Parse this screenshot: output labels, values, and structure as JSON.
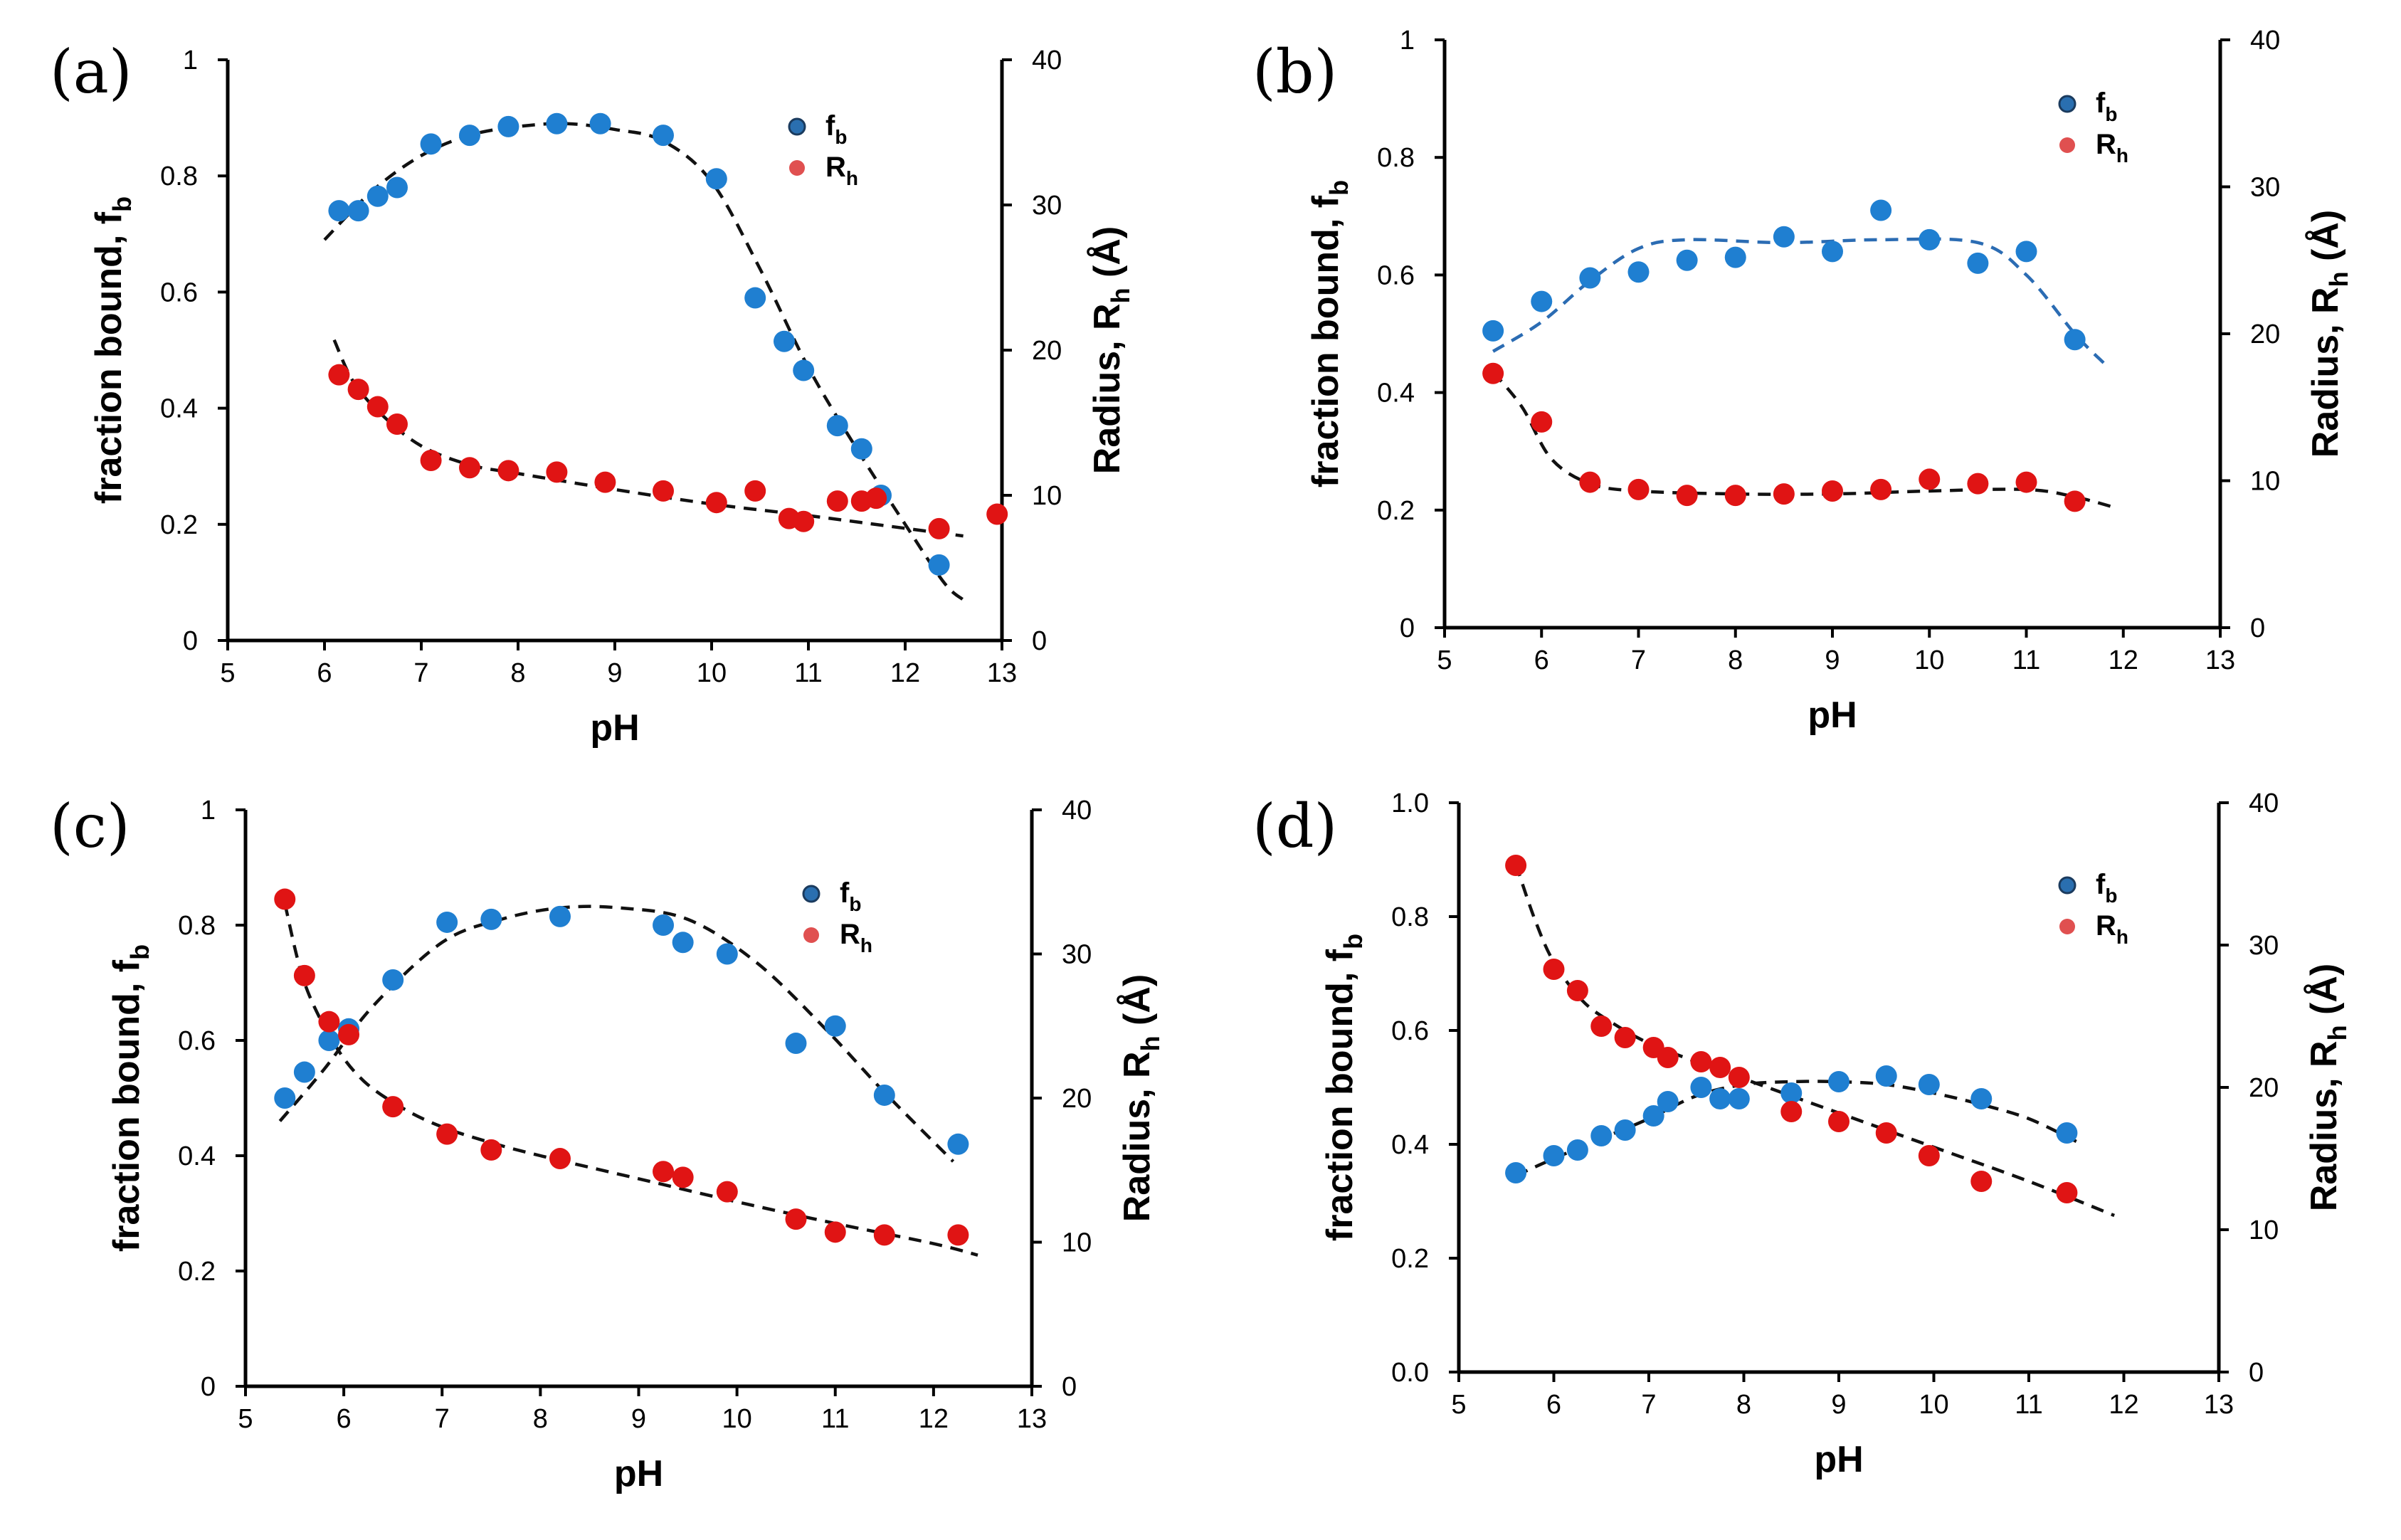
{
  "colors": {
    "fb": "#1f7fd1",
    "rh": "#e01414",
    "fit_black": "#111111",
    "fit_blue": "#2b6cb3"
  },
  "chart_data": [
    {
      "type": "scatter",
      "panel": "(a)",
      "xlabel": "pH",
      "ylabel": "fraction bound, f",
      "ylabel_sub": "b",
      "y2label": "Radius, R",
      "y2label_sub": "h",
      "y2label_unit": " (Å)",
      "xlim": [
        5,
        13
      ],
      "ylim": [
        0,
        1
      ],
      "y2lim": [
        0,
        40
      ],
      "xticks": [
        "5",
        "6",
        "7",
        "8",
        "9",
        "10",
        "11",
        "12",
        "13"
      ],
      "yticks": [
        "0",
        "0.2",
        "0.4",
        "0.6",
        "0.8",
        "1"
      ],
      "y2ticks": [
        "0",
        "10",
        "20",
        "30",
        "40"
      ],
      "legend": [
        {
          "main": "f",
          "sub": "b"
        },
        {
          "main": "R",
          "sub": "h"
        }
      ],
      "series": [
        {
          "name": "fb",
          "axis": "left",
          "x": [
            6.15,
            6.35,
            6.55,
            6.75,
            7.1,
            7.5,
            7.9,
            8.4,
            8.85,
            9.5,
            10.05,
            10.45,
            10.75,
            10.95,
            11.3,
            11.55,
            11.75,
            12.35
          ],
          "y": [
            0.74,
            0.74,
            0.765,
            0.78,
            0.855,
            0.87,
            0.885,
            0.89,
            0.89,
            0.87,
            0.795,
            0.59,
            0.515,
            0.465,
            0.37,
            0.33,
            0.25,
            0.13
          ]
        },
        {
          "name": "Rh",
          "axis": "right",
          "x": [
            6.15,
            6.35,
            6.55,
            6.75,
            7.1,
            7.5,
            7.9,
            8.4,
            8.9,
            9.5,
            10.05,
            10.45,
            10.8,
            10.95,
            11.3,
            11.55,
            11.7,
            12.35,
            12.95
          ],
          "y": [
            18.3,
            17.3,
            16.1,
            14.9,
            12.4,
            11.9,
            11.7,
            11.6,
            10.9,
            10.3,
            9.5,
            10.3,
            8.4,
            8.2,
            9.6,
            9.6,
            9.8,
            7.7,
            8.7
          ]
        },
        {
          "name": "fb-fit",
          "axis": "left",
          "style": "black",
          "x": [
            6.0,
            6.5,
            7.0,
            7.5,
            8.0,
            8.5,
            9.0,
            9.5,
            10.0,
            10.5,
            11.0,
            11.5,
            12.0,
            12.4,
            12.6
          ],
          "y": [
            0.69,
            0.775,
            0.835,
            0.87,
            0.885,
            0.89,
            0.88,
            0.86,
            0.79,
            0.64,
            0.47,
            0.33,
            0.2,
            0.1,
            0.07
          ]
        },
        {
          "name": "Rh-fit",
          "axis": "right",
          "style": "black",
          "x": [
            6.1,
            6.3,
            6.6,
            7.0,
            7.5,
            8.0,
            9.0,
            10.0,
            11.0,
            11.8,
            12.6
          ],
          "y": [
            20.7,
            17.8,
            15.5,
            13.4,
            12.1,
            11.5,
            10.4,
            9.4,
            8.6,
            7.9,
            7.2
          ]
        }
      ]
    },
    {
      "type": "scatter",
      "panel": "(b)",
      "xlabel": "pH",
      "ylabel": "fraction bound, f",
      "ylabel_sub": "b",
      "y2label": "Radius, R",
      "y2label_sub": "h",
      "y2label_unit": " (Å)",
      "xlim": [
        5,
        13
      ],
      "ylim": [
        0,
        1
      ],
      "y2lim": [
        0,
        40
      ],
      "xticks": [
        "5",
        "6",
        "7",
        "8",
        "9",
        "10",
        "11",
        "12",
        "13"
      ],
      "yticks": [
        "0",
        "0.2",
        "0.4",
        "0.6",
        "0.8",
        "1"
      ],
      "y2ticks": [
        "0",
        "10",
        "20",
        "30",
        "40"
      ],
      "legend": [
        {
          "main": "f",
          "sub": "b"
        },
        {
          "main": "R",
          "sub": "h"
        }
      ],
      "series": [
        {
          "name": "fb",
          "axis": "left",
          "x": [
            5.5,
            6.0,
            6.5,
            7.0,
            7.5,
            8.0,
            8.5,
            9.0,
            9.5,
            10.0,
            10.5,
            11.0,
            11.5
          ],
          "y": [
            0.505,
            0.555,
            0.595,
            0.605,
            0.625,
            0.63,
            0.665,
            0.64,
            0.71,
            0.66,
            0.62,
            0.64,
            0.49
          ]
        },
        {
          "name": "Rh",
          "axis": "right",
          "x": [
            5.5,
            6.0,
            6.5,
            7.0,
            7.5,
            8.0,
            8.5,
            9.0,
            9.5,
            10.0,
            10.5,
            11.0,
            11.5
          ],
          "y": [
            17.3,
            14.0,
            9.9,
            9.4,
            9.0,
            9.0,
            9.1,
            9.3,
            9.4,
            10.1,
            9.8,
            9.9,
            8.6
          ]
        },
        {
          "name": "fb-fit",
          "axis": "left",
          "style": "blue",
          "x": [
            5.5,
            6.0,
            6.5,
            7.0,
            7.5,
            8.5,
            9.5,
            10.5,
            11.0,
            11.5,
            11.8
          ],
          "y": [
            0.47,
            0.52,
            0.59,
            0.645,
            0.66,
            0.655,
            0.66,
            0.655,
            0.6,
            0.5,
            0.45
          ]
        },
        {
          "name": "Rh-fit",
          "axis": "right",
          "style": "black",
          "x": [
            5.5,
            5.8,
            6.1,
            6.5,
            7.0,
            8.0,
            9.0,
            10.0,
            11.0,
            11.5,
            11.9
          ],
          "y": [
            17.4,
            15.0,
            11.5,
            9.8,
            9.3,
            9.1,
            9.1,
            9.3,
            9.4,
            8.9,
            8.2
          ]
        }
      ]
    },
    {
      "type": "scatter",
      "panel": "(c)",
      "xlabel": "pH",
      "ylabel": "fraction bound, f",
      "ylabel_sub": "b",
      "y2label": "Radius, R",
      "y2label_sub": "h",
      "y2label_unit": " (Å)",
      "xlim": [
        5,
        13
      ],
      "ylim": [
        0,
        1
      ],
      "y2lim": [
        0,
        40
      ],
      "xticks": [
        "5",
        "6",
        "7",
        "8",
        "9",
        "10",
        "11",
        "12",
        "13"
      ],
      "yticks": [
        "0",
        "0.2",
        "0.4",
        "0.6",
        "0.8",
        "1"
      ],
      "y2ticks": [
        "0",
        "10",
        "20",
        "30",
        "40"
      ],
      "legend": [
        {
          "main": "f",
          "sub": "b"
        },
        {
          "main": "R",
          "sub": "h"
        }
      ],
      "series": [
        {
          "name": "fb",
          "axis": "left",
          "x": [
            5.4,
            5.6,
            5.85,
            6.05,
            6.5,
            7.05,
            7.5,
            8.2,
            9.25,
            9.45,
            9.9,
            10.6,
            11.0,
            11.5,
            12.25
          ],
          "y": [
            0.5,
            0.545,
            0.6,
            0.62,
            0.705,
            0.805,
            0.81,
            0.815,
            0.8,
            0.77,
            0.75,
            0.595,
            0.625,
            0.505,
            0.42
          ]
        },
        {
          "name": "Rh",
          "axis": "right",
          "x": [
            5.4,
            5.6,
            5.85,
            6.05,
            6.5,
            7.05,
            7.5,
            8.2,
            9.25,
            9.45,
            9.9,
            10.6,
            11.0,
            11.5,
            12.25
          ],
          "y": [
            33.8,
            28.5,
            25.3,
            24.4,
            19.4,
            17.5,
            16.4,
            15.8,
            14.9,
            14.5,
            13.5,
            11.6,
            10.7,
            10.5,
            10.5
          ]
        },
        {
          "name": "fb-fit",
          "axis": "left",
          "style": "black",
          "x": [
            5.35,
            5.8,
            6.3,
            7.0,
            7.6,
            8.2,
            8.8,
            9.5,
            10.2,
            10.9,
            11.5,
            12.2
          ],
          "y": [
            0.46,
            0.55,
            0.66,
            0.77,
            0.81,
            0.83,
            0.83,
            0.81,
            0.735,
            0.62,
            0.51,
            0.39
          ]
        },
        {
          "name": "Rh-fit",
          "axis": "right",
          "style": "black",
          "x": [
            5.4,
            5.6,
            5.9,
            6.2,
            6.6,
            7.0,
            7.5,
            8.0,
            9.0,
            10.0,
            11.0,
            12.0,
            12.45
          ],
          "y": [
            33.5,
            28.0,
            23.8,
            21.2,
            19.3,
            18.0,
            16.9,
            16.0,
            14.4,
            12.8,
            11.3,
            9.9,
            9.1
          ]
        }
      ]
    },
    {
      "type": "scatter",
      "panel": "(d)",
      "xlabel": "pH",
      "ylabel": "fraction bound, f",
      "ylabel_sub": "b",
      "y2label": "Radius, R",
      "y2label_sub": "h",
      "y2label_unit": " (Å)",
      "xlim": [
        5,
        13
      ],
      "ylim": [
        0,
        1
      ],
      "y2lim": [
        0,
        40
      ],
      "xticks": [
        "5",
        "6",
        "7",
        "8",
        "9",
        "10",
        "11",
        "12",
        "13"
      ],
      "yticks": [
        "0.0",
        "0.2",
        "0.4",
        "0.6",
        "0.8",
        "1.0"
      ],
      "y2ticks": [
        "0",
        "10",
        "20",
        "30",
        "40"
      ],
      "legend": [
        {
          "main": "f",
          "sub": "b"
        },
        {
          "main": "R",
          "sub": "h"
        }
      ],
      "series": [
        {
          "name": "fb",
          "axis": "left",
          "x": [
            5.6,
            6.0,
            6.25,
            6.5,
            6.75,
            7.05,
            7.2,
            7.55,
            7.75,
            7.95,
            8.5,
            9.0,
            9.5,
            9.95,
            10.5,
            11.4
          ],
          "y": [
            0.35,
            0.38,
            0.39,
            0.415,
            0.425,
            0.45,
            0.475,
            0.5,
            0.48,
            0.48,
            0.49,
            0.51,
            0.52,
            0.505,
            0.48,
            0.42
          ]
        },
        {
          "name": "Rh",
          "axis": "right",
          "x": [
            5.6,
            6.0,
            6.25,
            6.5,
            6.75,
            7.05,
            7.2,
            7.55,
            7.75,
            7.95,
            8.5,
            9.0,
            9.5,
            9.95,
            10.5,
            11.4
          ],
          "y": [
            35.6,
            28.3,
            26.8,
            24.3,
            23.5,
            22.8,
            22.1,
            21.8,
            21.4,
            20.7,
            18.3,
            17.6,
            16.8,
            15.2,
            13.4,
            12.6
          ]
        },
        {
          "name": "fb-fit",
          "axis": "left",
          "style": "black",
          "x": [
            5.6,
            6.0,
            6.5,
            7.0,
            7.5,
            8.0,
            8.5,
            9.0,
            9.5,
            10.0,
            10.5,
            11.0,
            11.5
          ],
          "y": [
            0.345,
            0.375,
            0.41,
            0.445,
            0.485,
            0.505,
            0.51,
            0.51,
            0.505,
            0.49,
            0.47,
            0.445,
            0.405
          ]
        },
        {
          "name": "Rh-fit",
          "axis": "right",
          "style": "black",
          "x": [
            5.6,
            5.8,
            6.0,
            6.3,
            6.6,
            7.0,
            7.5,
            8.0,
            9.0,
            10.0,
            11.0,
            11.9
          ],
          "y": [
            35.7,
            31.8,
            28.8,
            26.1,
            24.6,
            23.1,
            21.8,
            20.6,
            18.2,
            15.8,
            13.4,
            11.0
          ]
        }
      ]
    }
  ]
}
